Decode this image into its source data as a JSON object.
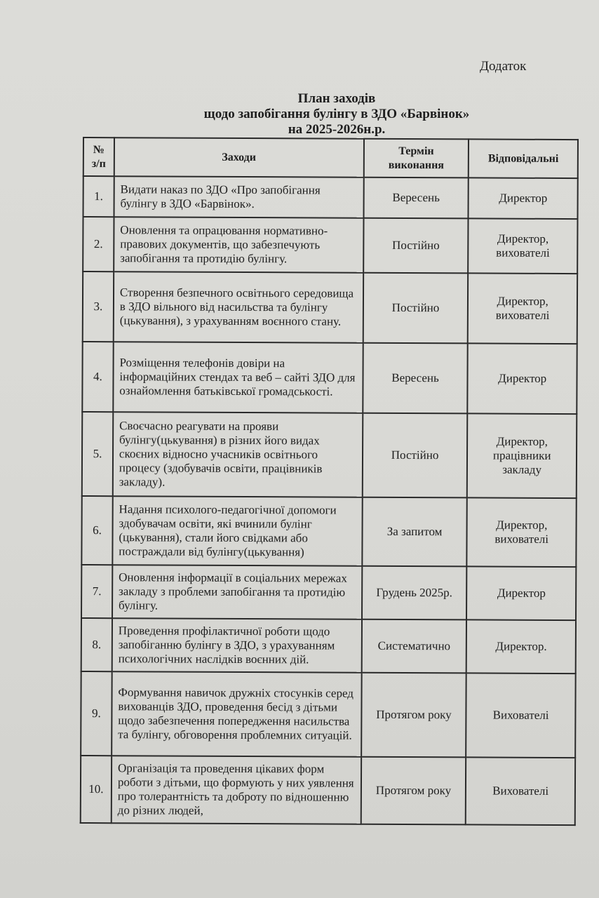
{
  "header": {
    "addendum": "Додаток"
  },
  "title": {
    "line1": "План заходів",
    "line2": "щодо запобігання булінгу в  ЗДО «Барвінок»",
    "line3": "на 2025-2026н.р."
  },
  "table": {
    "columns": [
      "№ з/п",
      "Заходи",
      "Термін виконання",
      "Відповідальні"
    ],
    "rows": [
      {
        "num": "1.",
        "task": "Видати наказ по ЗДО «Про запобігання булінгу в ЗДО «Барвінок».",
        "term": "Вересень",
        "resp": "Директор"
      },
      {
        "num": "2.",
        "task": "Оновлення та опрацювання нормативно-правових документів, що забезпечують запобігання та протидію булінгу.",
        "term": "Постійно",
        "resp": "Директор, вихователі"
      },
      {
        "num": "3.",
        "task": "Створення безпечного освітнього середовища в ЗДО вільного від насильства та булінгу (цькування), з урахуванням воєнного стану.",
        "term": "Постійно",
        "resp": "Директор, вихователі"
      },
      {
        "num": "4.",
        "task": "Розміщення телефонів довіри на інформаційних стендах та веб – сайті ЗДО для ознайомлення батьківської громадськості.",
        "term": "Вересень",
        "resp": "Директор"
      },
      {
        "num": "5.",
        "task": "Своєчасно реагувати на прояви булінгу(цькування) в різних його видах скоєних відносно учасників освітнього процесу (здобувачів освіти, працівників закладу).",
        "term": "Постійно",
        "resp": "Директор, працівники закладу"
      },
      {
        "num": "6.",
        "task": "Надання психолого-педагогічної допомоги здобувачам освіти, які вчинили булінг (цькування), стали його свідками або постраждали від булінгу(цькування)",
        "term": "За запитом",
        "resp": "Директор, вихователі"
      },
      {
        "num": "7.",
        "task": "Оновлення інформації в соціальних мережах закладу  з проблеми запобігання та протидію булінгу.",
        "term": "Грудень 2025р.",
        "resp": "Директор"
      },
      {
        "num": "8.",
        "task": "Проведення профілактичної роботи щодо запобіганню булінгу в ЗДО, з урахуванням психологічних наслідків воєнних дій.",
        "term": "Систематично",
        "resp": "Директор."
      },
      {
        "num": "9.",
        "task": "Формування навичок дружніх стосунків серед вихованців ЗДО, проведення бесід з дітьми щодо забезпечення попередження насильства та булінгу, обговорення проблемних ситуацій.",
        "term": "Протягом року",
        "resp": "Вихователі"
      },
      {
        "num": "10.",
        "task": "Організація та проведення цікавих форм роботи з дітьми, що формують у них уявлення про толерантність та доброту по відношенню до різних людей,",
        "term": "Протягом року",
        "resp": "Вихователі"
      }
    ]
  }
}
